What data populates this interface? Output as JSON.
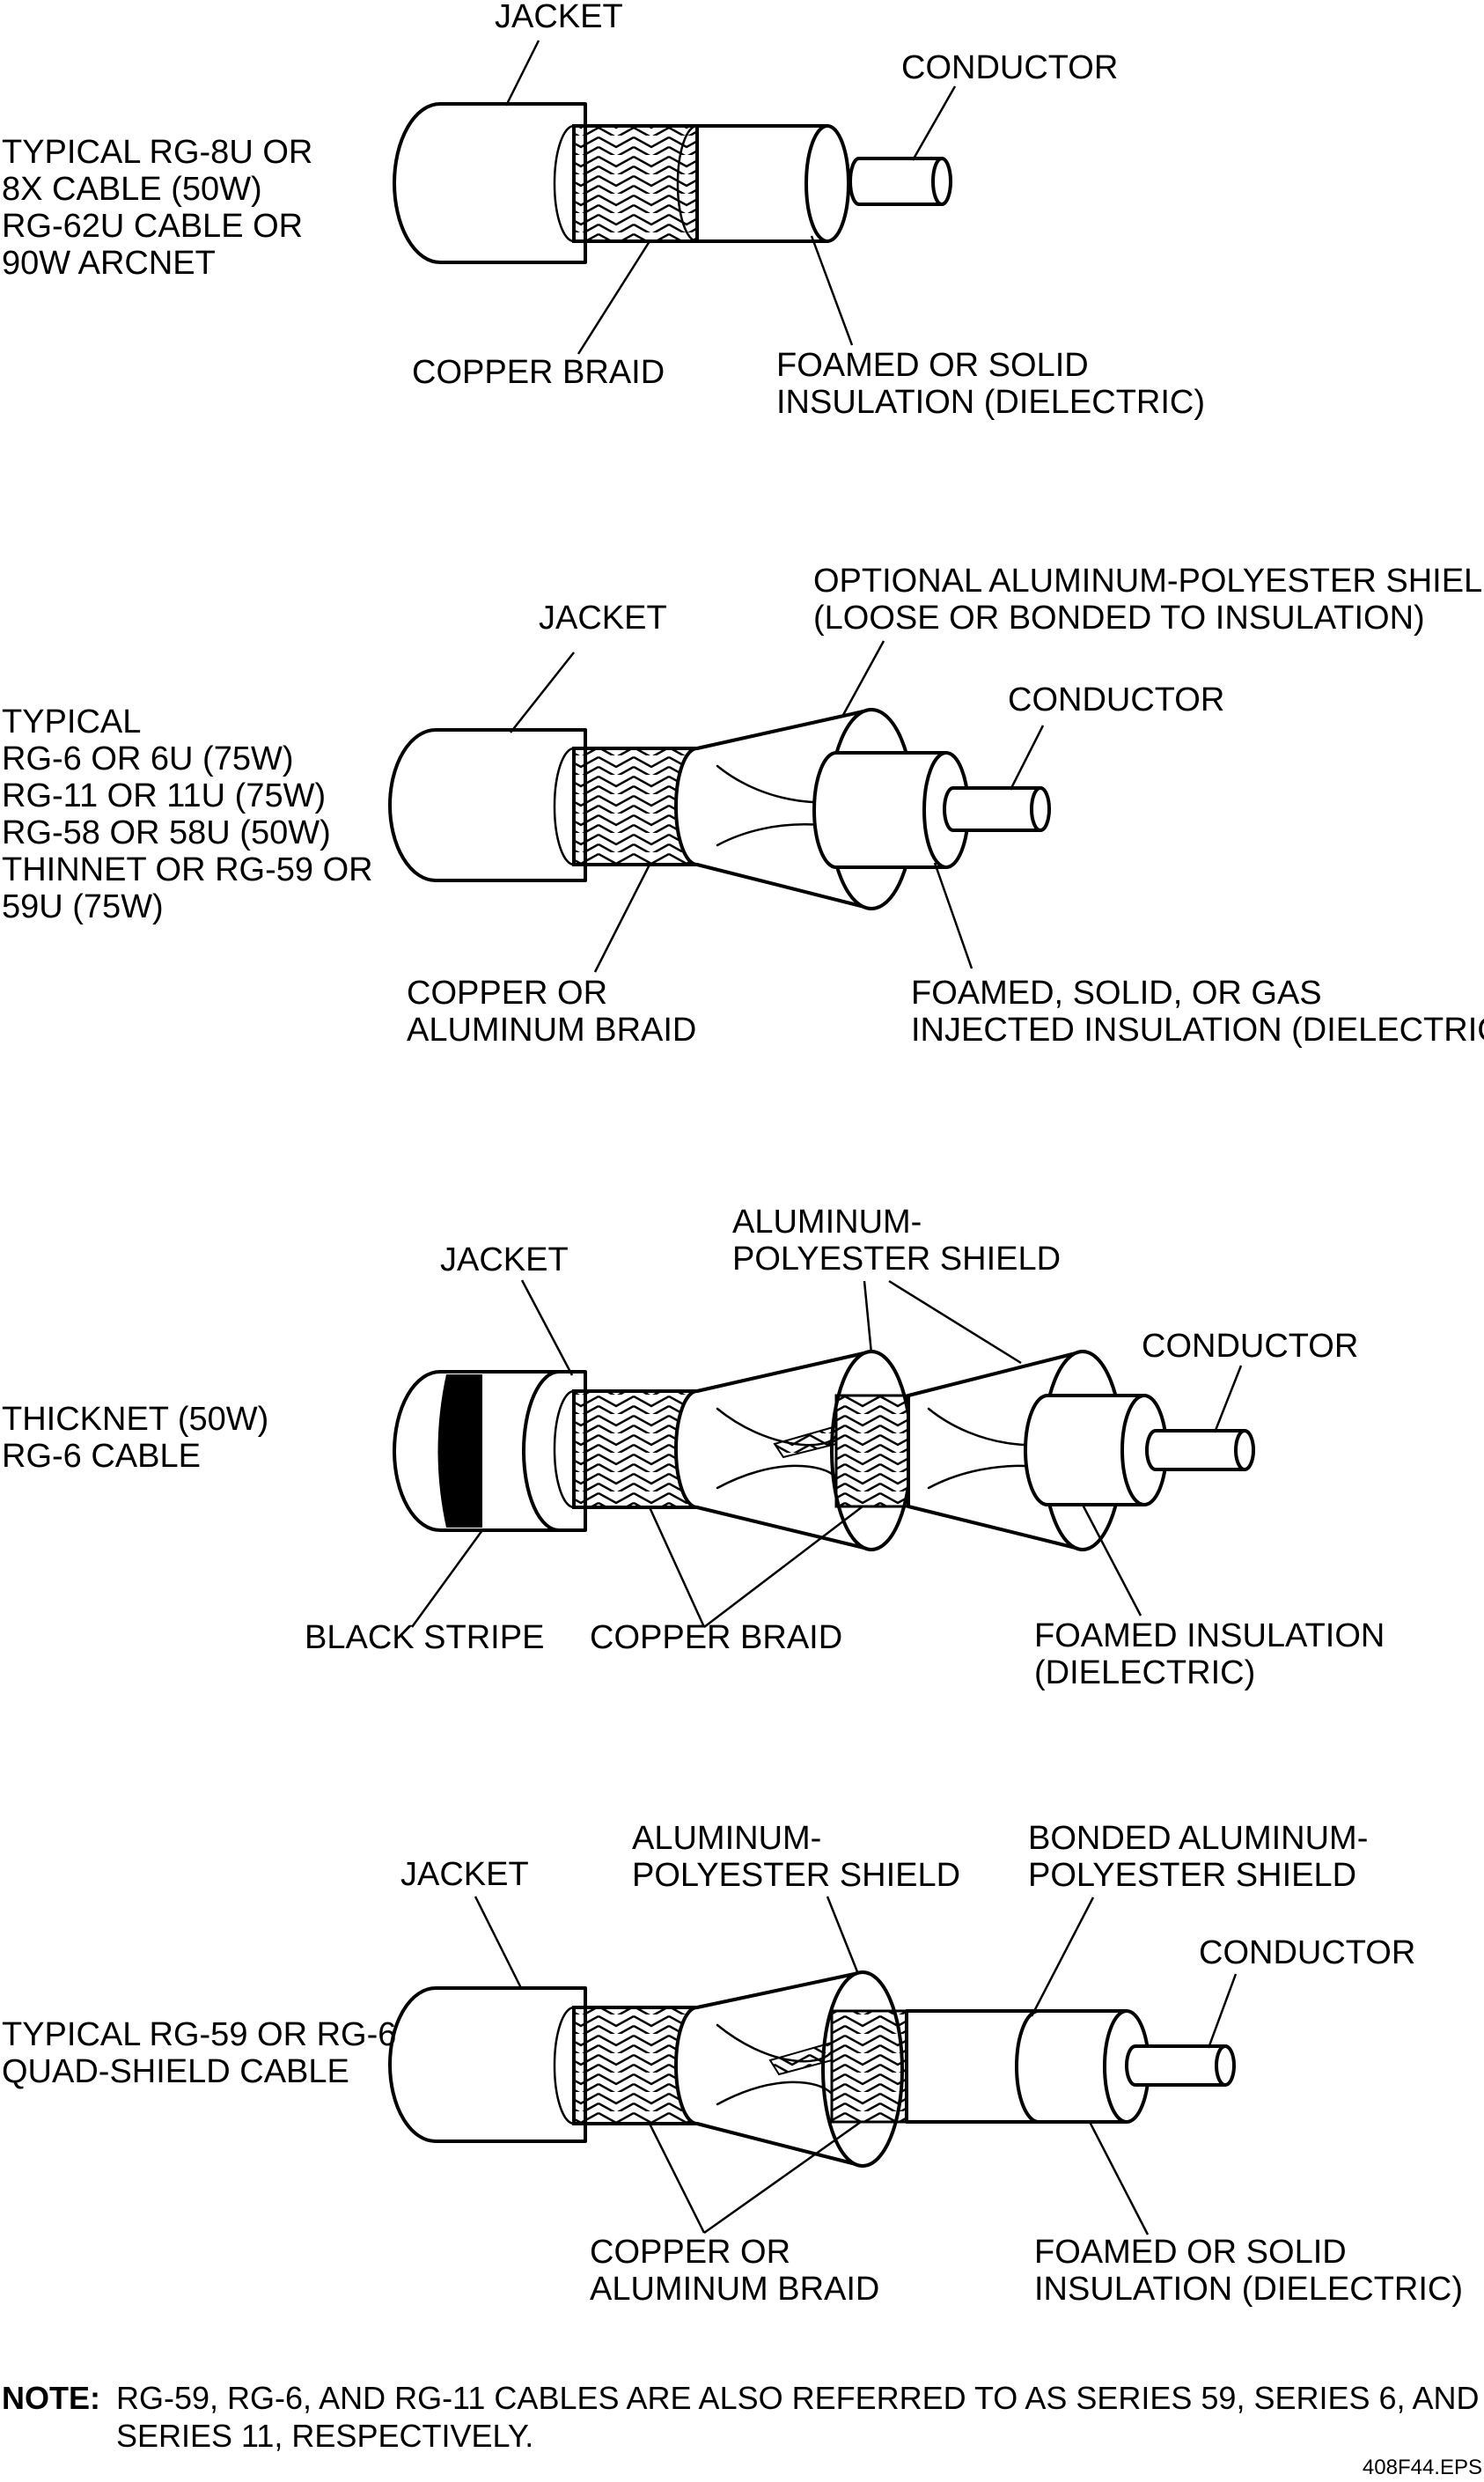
{
  "cables": [
    {
      "description": [
        "TYPICAL RG-8U OR",
        "8X CABLE (50W)",
        "RG-62U CABLE OR",
        "90W ARCNET"
      ],
      "labels": {
        "jacket": [
          "JACKET"
        ],
        "conductor": [
          "CONDUCTOR"
        ],
        "braid": [
          "COPPER BRAID"
        ],
        "insulation": [
          "FOAMED OR SOLID",
          "INSULATION (DIELECTRIC)"
        ]
      }
    },
    {
      "description": [
        "TYPICAL",
        "RG-6 OR 6U (75W)",
        "RG-11 OR 11U (75W)",
        "RG-58 OR 58U (50W)",
        "THINNET OR RG-59 OR",
        "59U (75W)"
      ],
      "labels": {
        "jacket": [
          "JACKET"
        ],
        "shield": [
          "OPTIONAL ALUMINUM-POLYESTER SHIELD",
          "(LOOSE OR BONDED TO INSULATION)"
        ],
        "conductor": [
          "CONDUCTOR"
        ],
        "braid": [
          "COPPER OR",
          "ALUMINUM BRAID"
        ],
        "insulation": [
          "FOAMED, SOLID, OR GAS",
          "INJECTED INSULATION (DIELECTRIC)"
        ]
      }
    },
    {
      "description": [
        "THICKNET (50W)",
        "RG-6 CABLE"
      ],
      "labels": {
        "jacket": [
          "JACKET"
        ],
        "shield": [
          "ALUMINUM-",
          "POLYESTER SHIELD"
        ],
        "conductor": [
          "CONDUCTOR"
        ],
        "stripe": [
          "BLACK STRIPE"
        ],
        "braid": [
          "COPPER BRAID"
        ],
        "insulation": [
          "FOAMED INSULATION",
          "(DIELECTRIC)"
        ]
      }
    },
    {
      "description": [
        "TYPICAL RG-59 OR RG-6",
        "QUAD-SHIELD CABLE"
      ],
      "labels": {
        "jacket": [
          "JACKET"
        ],
        "shield": [
          "ALUMINUM-",
          "POLYESTER SHIELD"
        ],
        "bonded_shield": [
          "BONDED ALUMINUM-",
          "POLYESTER SHIELD"
        ],
        "conductor": [
          "CONDUCTOR"
        ],
        "braid": [
          "COPPER OR",
          "ALUMINUM BRAID"
        ],
        "insulation": [
          "FOAMED OR SOLID",
          "INSULATION (DIELECTRIC)"
        ]
      }
    }
  ],
  "note": {
    "label": "NOTE:",
    "lines": [
      "RG-59, RG-6, AND RG-11 CABLES ARE ALSO REFERRED TO AS SERIES 59, SERIES 6, AND",
      "SERIES 11, RESPECTIVELY."
    ]
  },
  "file_id": "408F44.EPS"
}
